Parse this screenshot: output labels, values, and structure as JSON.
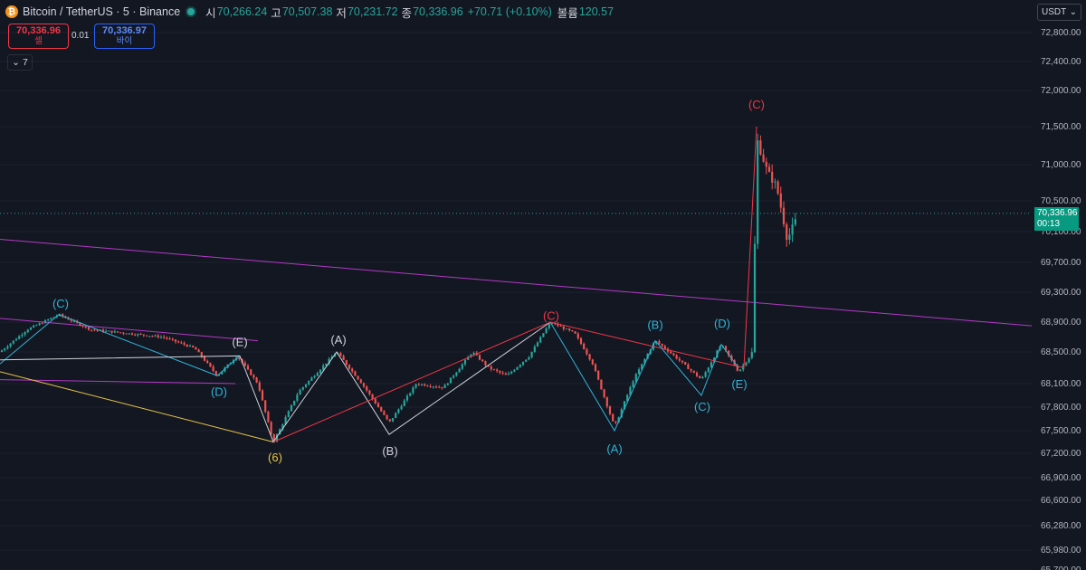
{
  "header": {
    "symbol": "Bitcoin / TetherUS · 5 · Binance",
    "open_label": "시",
    "open": "70,266.24",
    "high_label": "고",
    "high": "70,507.38",
    "low_label": "저",
    "low": "70,231.72",
    "close_label": "종",
    "close": "70,336.96",
    "change": "+70.71 (+0.10%)",
    "volume_label": "볼륨",
    "volume": "120.57"
  },
  "trade": {
    "sell_price": "70,336.96",
    "sell_label": "셀",
    "spread": "0.01",
    "buy_price": "70,336.97",
    "buy_label": "바이"
  },
  "indicators_toggle": "7",
  "currency": "USDT",
  "last_price": {
    "price": "70,336.96",
    "countdown": "00:13"
  },
  "colors": {
    "background": "#131722",
    "up": "#26a69a",
    "down": "#ef5350",
    "cyan": "#2fb3d6",
    "red": "#f23645",
    "white": "#d1d4dc",
    "purple": "#b33ac6",
    "yellow": "#e8c547"
  },
  "chart_data": {
    "type": "candlestick",
    "y_axis_ticks": [
      72800,
      72400,
      72000,
      71500,
      71000,
      70500,
      70100,
      69700,
      69300,
      68900,
      68500,
      68100,
      67800,
      67500,
      67200,
      66900,
      66600,
      66280,
      65980,
      65700
    ],
    "y_tick_labels": [
      "72,800.00",
      "72,400.00",
      "72,000.00",
      "71,500.00",
      "71,000.00",
      "70,500.00",
      "70,100.00",
      "69,700.00",
      "69,300.00",
      "68,900.00",
      "68,500.00",
      "68,100.00",
      "67,800.00",
      "67,500.00",
      "67,200.00",
      "66,900.00",
      "66,600.00",
      "66,280.00",
      "65,980.00",
      "65,700.00"
    ],
    "ylim": [
      65700,
      72800
    ],
    "last_price": 70336.96,
    "price_path": [
      [
        0,
        68500
      ],
      [
        30,
        68800
      ],
      [
        65,
        69000
      ],
      [
        100,
        68800
      ],
      [
        140,
        68750
      ],
      [
        180,
        68700
      ],
      [
        215,
        68550
      ],
      [
        240,
        68200
      ],
      [
        262,
        68450
      ],
      [
        285,
        68100
      ],
      [
        302,
        67350
      ],
      [
        330,
        68000
      ],
      [
        372,
        68500
      ],
      [
        400,
        68100
      ],
      [
        430,
        67600
      ],
      [
        460,
        68100
      ],
      [
        490,
        68050
      ],
      [
        522,
        68500
      ],
      [
        540,
        68300
      ],
      [
        560,
        68200
      ],
      [
        585,
        68450
      ],
      [
        608,
        68900
      ],
      [
        635,
        68750
      ],
      [
        655,
        68350
      ],
      [
        679,
        67550
      ],
      [
        700,
        68150
      ],
      [
        724,
        68650
      ],
      [
        745,
        68450
      ],
      [
        775,
        68150
      ],
      [
        797,
        68600
      ],
      [
        816,
        68250
      ],
      [
        832,
        68500
      ],
      [
        836,
        71350
      ],
      [
        848,
        70900
      ],
      [
        858,
        70700
      ],
      [
        870,
        70000
      ],
      [
        883,
        70336.96
      ]
    ],
    "zigzags": [
      {
        "color": "cyan",
        "points": [
          [
            0,
            68350
          ],
          [
            65,
            69000
          ],
          [
            240,
            68200
          ],
          [
            265,
            68450
          ]
        ]
      },
      {
        "color": "white",
        "points": [
          [
            0,
            68400
          ],
          [
            265,
            68450
          ],
          [
            302,
            67350
          ],
          [
            372,
            68500
          ],
          [
            430,
            67450
          ],
          [
            608,
            68900
          ]
        ]
      },
      {
        "color": "red",
        "points": [
          [
            302,
            67350
          ],
          [
            608,
            68900
          ],
          [
            822,
            68300
          ]
        ]
      },
      {
        "color": "cyan",
        "points": [
          [
            608,
            68900
          ],
          [
            679,
            67500
          ],
          [
            724,
            68650
          ],
          [
            775,
            67950
          ],
          [
            797,
            68600
          ],
          [
            816,
            68300
          ]
        ]
      },
      {
        "color": "red",
        "points": [
          [
            822,
            68300
          ],
          [
            836,
            71500
          ]
        ]
      }
    ],
    "trendlines": [
      {
        "color": "purple",
        "from": [
          0,
          70000
        ],
        "to": [
          1140,
          68850
        ]
      },
      {
        "color": "purple",
        "from": [
          0,
          68950
        ],
        "to": [
          285,
          68650
        ]
      },
      {
        "color": "purple",
        "from": [
          0,
          68150
        ],
        "to": [
          260,
          68100
        ]
      },
      {
        "color": "yellow",
        "from": [
          0,
          68250
        ],
        "to": [
          302,
          67350
        ]
      }
    ],
    "wave_labels": [
      {
        "text": "(C)",
        "x": 67,
        "price": 69140,
        "color": "cyan"
      },
      {
        "text": "(D)",
        "x": 242,
        "price": 67990,
        "color": "cyan"
      },
      {
        "text": "(E)",
        "x": 265,
        "price": 68625,
        "color": "white"
      },
      {
        "text": "(6)",
        "x": 304,
        "price": 67145,
        "color": "yellow"
      },
      {
        "text": "(A)",
        "x": 374,
        "price": 68660,
        "color": "white"
      },
      {
        "text": "(B)",
        "x": 431,
        "price": 67225,
        "color": "white"
      },
      {
        "text": "(C)",
        "x": 609,
        "price": 68980,
        "color": "red"
      },
      {
        "text": "(A)",
        "x": 679,
        "price": 67255,
        "color": "cyan"
      },
      {
        "text": "(B)",
        "x": 724,
        "price": 68860,
        "color": "cyan"
      },
      {
        "text": "(C)",
        "x": 776,
        "price": 67800,
        "color": "cyan"
      },
      {
        "text": "(D)",
        "x": 798,
        "price": 68875,
        "color": "cyan"
      },
      {
        "text": "(E)",
        "x": 817,
        "price": 68090,
        "color": "cyan"
      },
      {
        "text": "(C)",
        "x": 836,
        "price": 71800,
        "color": "red"
      }
    ]
  }
}
